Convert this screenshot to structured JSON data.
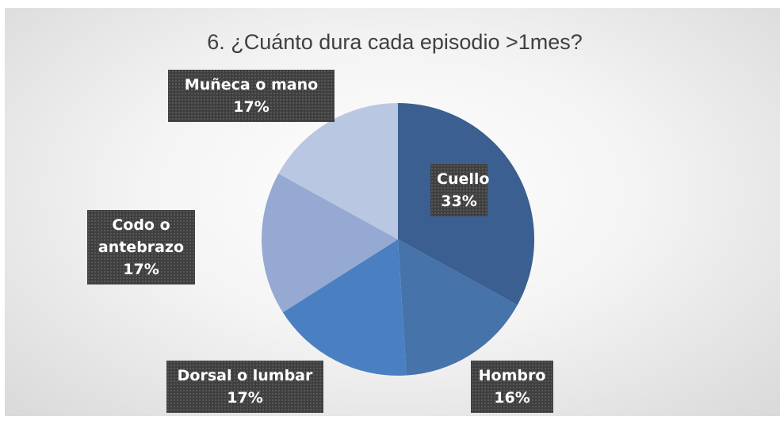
{
  "chart_data": {
    "type": "pie",
    "title": "6. ¿Cuánto dura cada episodio >1mes?",
    "categories": [
      "Cuello",
      "Hombro",
      "Dorsal o lumbar",
      "Codo o antebrazo",
      "Muñeca o mano"
    ],
    "values": [
      33,
      16,
      17,
      17,
      17
    ],
    "value_labels": [
      "33%",
      "16%",
      "17%",
      "17%",
      "17%"
    ],
    "colors": [
      "#3b5f90",
      "#4673aa",
      "#4a80c2",
      "#95a9d2",
      "#bac7e2"
    ]
  }
}
